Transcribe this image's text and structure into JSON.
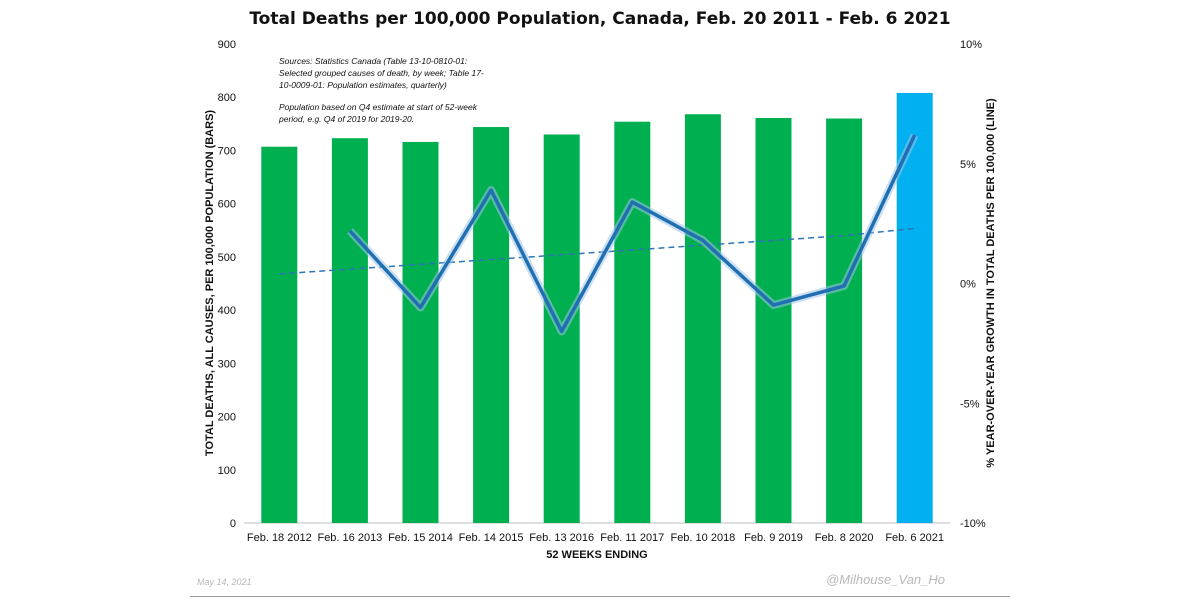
{
  "chart_data": {
    "type": "bar",
    "title": "Total Deaths per 100,000 Population, Canada, Feb. 20 2011 - Feb. 6 2021",
    "xlabel": "52 WEEKS ENDING",
    "ylabel": "TOTAL DEATHS, ALL CAUSES, PER 100,000 POPULATION (BARS)",
    "y2label": "% YEAR-OVER-YEAR GROWTH IN TOTAL DEATHS PER 100,000 (LINE)",
    "categories": [
      "Feb. 18 2012",
      "Feb. 16 2013",
      "Feb. 15 2014",
      "Feb. 14 2015",
      "Feb. 13 2016",
      "Feb. 11 2017",
      "Feb. 10 2018",
      "Feb. 9 2019",
      "Feb. 8 2020",
      "Feb. 6 2021"
    ],
    "ylim": [
      0,
      900
    ],
    "yticks": [
      "0",
      "100",
      "200",
      "300",
      "400",
      "500",
      "600",
      "700",
      "800",
      "900"
    ],
    "y2lim": [
      -10,
      10
    ],
    "y2ticks": [
      "-10%",
      "-5%",
      "0%",
      "5%",
      "10%"
    ],
    "grid": false,
    "series": [
      {
        "type": "bar",
        "values": [
          707,
          723,
          716,
          744,
          730,
          754,
          768,
          761,
          760,
          808
        ],
        "colors": [
          "#00b050",
          "#00b050",
          "#00b050",
          "#00b050",
          "#00b050",
          "#00b050",
          "#00b050",
          "#00b050",
          "#00b050",
          "#00b0f0"
        ]
      },
      {
        "type": "line",
        "axis": "right",
        "color": "#1f6fb2",
        "values": [
          null,
          2.2,
          -1.0,
          3.9,
          -2.0,
          3.4,
          1.8,
          -0.9,
          -0.1,
          6.2
        ]
      },
      {
        "type": "line",
        "axis": "right",
        "style": "dashed",
        "trendline": true,
        "color": "#2e75b6",
        "values": [
          0.4,
          0.6,
          0.8,
          1.0,
          1.2,
          1.4,
          1.6,
          1.8,
          2.0,
          2.3
        ]
      }
    ],
    "annotations": {
      "sources": [
        "Sources: Statistics Canada (Table 13-10-0810-01:",
        "Selected grouped causes of death, by week; Table 17-",
        "10-0009-01: Population estimates, quarterly)"
      ],
      "population_note": [
        "Population based on Q4 estimate at start of 52-week",
        "period, e.g. Q4 of 2019 for 2019-20."
      ]
    }
  },
  "footer": {
    "date": "May 14, 2021",
    "handle": "@Milhouse_Van_Ho"
  }
}
